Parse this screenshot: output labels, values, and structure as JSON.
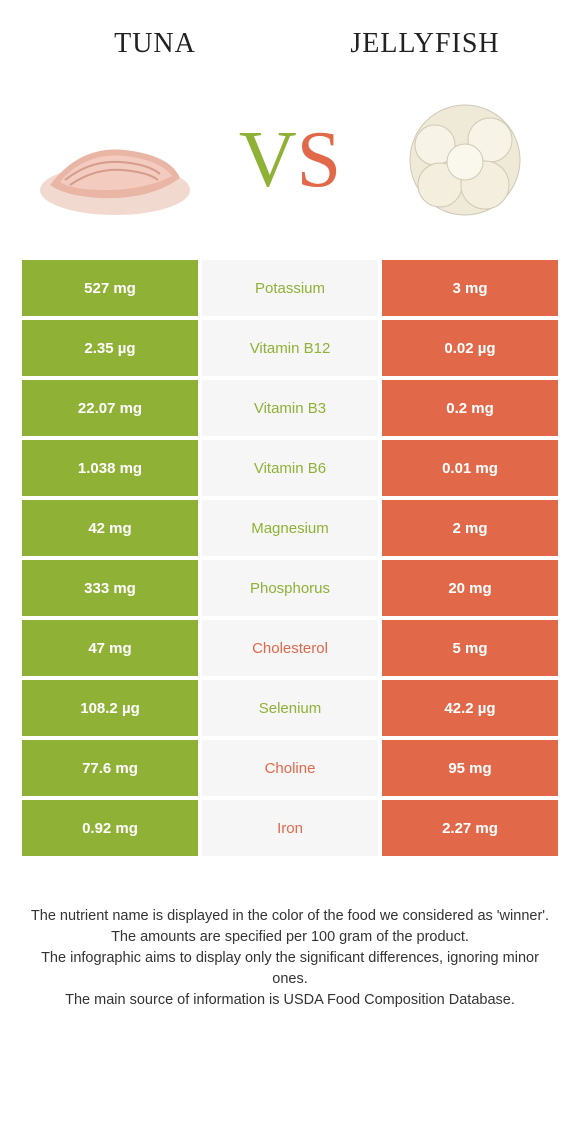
{
  "colors": {
    "left": "#8fb236",
    "right": "#e2684a",
    "mid_bg": "#f6f6f6",
    "page_bg": "#ffffff",
    "text": "#333333"
  },
  "header": {
    "left_title": "Tuna",
    "right_title": "Jellyfish"
  },
  "vs": {
    "v": "V",
    "s": "S"
  },
  "rows": [
    {
      "left": "527 mg",
      "label": "Potassium",
      "winner": "left",
      "right": "3 mg"
    },
    {
      "left": "2.35 µg",
      "label": "Vitamin B12",
      "winner": "left",
      "right": "0.02 µg"
    },
    {
      "left": "22.07 mg",
      "label": "Vitamin B3",
      "winner": "left",
      "right": "0.2 mg"
    },
    {
      "left": "1.038 mg",
      "label": "Vitamin B6",
      "winner": "left",
      "right": "0.01 mg"
    },
    {
      "left": "42 mg",
      "label": "Magnesium",
      "winner": "left",
      "right": "2 mg"
    },
    {
      "left": "333 mg",
      "label": "Phosphorus",
      "winner": "left",
      "right": "20 mg"
    },
    {
      "left": "47 mg",
      "label": "Cholesterol",
      "winner": "right",
      "right": "5 mg"
    },
    {
      "left": "108.2 µg",
      "label": "Selenium",
      "winner": "left",
      "right": "42.2 µg"
    },
    {
      "left": "77.6 mg",
      "label": "Choline",
      "winner": "right",
      "right": "95 mg"
    },
    {
      "left": "0.92 mg",
      "label": "Iron",
      "winner": "right",
      "right": "2.27 mg"
    }
  ],
  "footer": {
    "line1": "The nutrient name is displayed in the color of the food we considered as 'winner'.",
    "line2": "The amounts are specified per 100 gram of the product.",
    "line3": "The infographic aims to display only the significant differences, ignoring minor ones.",
    "line4": "The main source of information is USDA Food Composition Database."
  }
}
